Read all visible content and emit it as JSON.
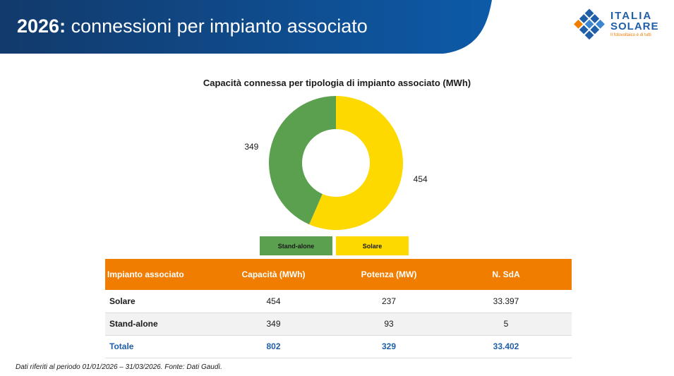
{
  "header": {
    "title_year": "2026:",
    "title_rest": " connessioni per impianto associato",
    "background_color": "#123a6b"
  },
  "logo": {
    "line1": "ITALIA",
    "line2": "SOLARE",
    "tagline": "Il fotovoltaico è di tutti",
    "icon": "solar-panel-diamond-icon"
  },
  "chart_data": {
    "type": "pie",
    "style": "donut",
    "title": "Capacità connessa per tipologia di impianto associato (MWh)",
    "categories": [
      "Solare",
      "Stand-alone"
    ],
    "values": [
      454,
      349
    ],
    "value_labels": [
      "454",
      "349"
    ],
    "legend": [
      "Stand-alone",
      "Solare"
    ],
    "legend_placement": "bottom",
    "colors": {
      "Solare": "#fdd900",
      "Stand-alone": "#5ba04e"
    }
  },
  "table": {
    "headers": [
      "Impianto associato",
      "Capacità (MWh)",
      "Potenza (MW)",
      "N. SdA"
    ],
    "rows": [
      [
        "Solare",
        "454",
        "237",
        "33.397"
      ],
      [
        "Stand-alone",
        "349",
        "93",
        "5"
      ]
    ],
    "total": [
      "Totale",
      "802",
      "329",
      "33.402"
    ],
    "header_color": "#f07c00",
    "total_color": "#1f5fa8"
  },
  "footnote": "Dati riferiti al periodo 01/01/2026 – 31/03/2026. Fonte: Dati Gaudì."
}
